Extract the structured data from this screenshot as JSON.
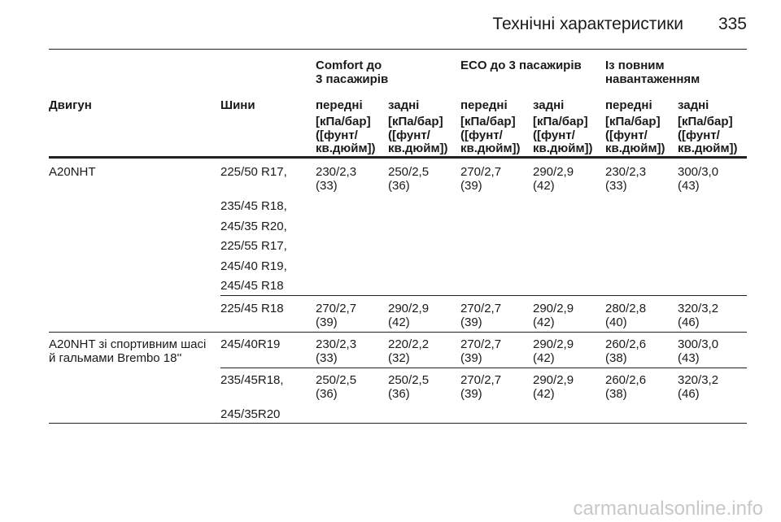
{
  "header": {
    "title": "Технічні характеристики",
    "page_number": "335"
  },
  "table": {
    "group_headers": [
      {
        "lines": [
          "Comfort до",
          "3 пасажирів"
        ]
      },
      {
        "lines": [
          "ECO до 3 пасажирів"
        ]
      },
      {
        "lines": [
          "Із повним",
          "навантаженням"
        ]
      }
    ],
    "columns": [
      "Двигун",
      "Шини",
      "передні",
      "задні",
      "передні",
      "задні",
      "передні",
      "задні"
    ],
    "units": [
      [
        "[кПа/бар]",
        "([фунт/",
        "кв.дюйм])"
      ],
      [
        "[кПа/бар]",
        "([фунт/",
        "кв.дюйм])"
      ],
      [
        "[кПа/бар]",
        "([фунт/",
        "кв.дюйм])"
      ],
      [
        "[кПа/бар]",
        "([фунт/",
        "кв.дюйм])"
      ],
      [
        "[кПа/бар]",
        "([фунт/",
        "кв.дюйм])"
      ],
      [
        "[кПа/бар]",
        "([фунт/",
        "кв.дюйм])"
      ]
    ],
    "groups": [
      {
        "engine": [
          "A20NHT"
        ],
        "subrows": [
          {
            "tires": [
              "225/50 R17,",
              "235/45 R18,",
              "245/35 R20,",
              "225/55 R17,",
              "245/40 R19,",
              "245/45 R18"
            ],
            "values": [
              [
                "230/2,3",
                "(33)"
              ],
              [
                "250/2,5",
                "(36)"
              ],
              [
                "270/2,7",
                "(39)"
              ],
              [
                "290/2,9",
                "(42)"
              ],
              [
                "230/2,3",
                "(33)"
              ],
              [
                "300/3,0",
                "(43)"
              ]
            ]
          },
          {
            "tires": [
              "225/45 R18"
            ],
            "values": [
              [
                "270/2,7",
                "(39)"
              ],
              [
                "290/2,9",
                "(42)"
              ],
              [
                "270/2,7",
                "(39)"
              ],
              [
                "290/2,9",
                "(42)"
              ],
              [
                "280/2,8",
                "(40)"
              ],
              [
                "320/3,2",
                "(46)"
              ]
            ]
          }
        ]
      },
      {
        "engine": [
          "A20NHT зі спортивним шасі",
          "й гальмами Brembo 18''"
        ],
        "subrows": [
          {
            "tires": [
              "245/40R19"
            ],
            "values": [
              [
                "230/2,3",
                "(33)"
              ],
              [
                "220/2,2",
                "(32)"
              ],
              [
                "270/2,7",
                "(39)"
              ],
              [
                "290/2,9",
                "(42)"
              ],
              [
                "260/2,6",
                "(38)"
              ],
              [
                "300/3,0",
                "(43)"
              ]
            ]
          },
          {
            "tires": [
              "235/45R18,",
              "245/35R20"
            ],
            "values": [
              [
                "250/2,5",
                "(36)"
              ],
              [
                "250/2,5",
                "(36)"
              ],
              [
                "270/2,7",
                "(39)"
              ],
              [
                "290/2,9",
                "(42)"
              ],
              [
                "260/2,6",
                "(38)"
              ],
              [
                "320/3,2",
                "(46)"
              ]
            ]
          }
        ]
      }
    ]
  },
  "watermark": "carmanualsonline.info"
}
